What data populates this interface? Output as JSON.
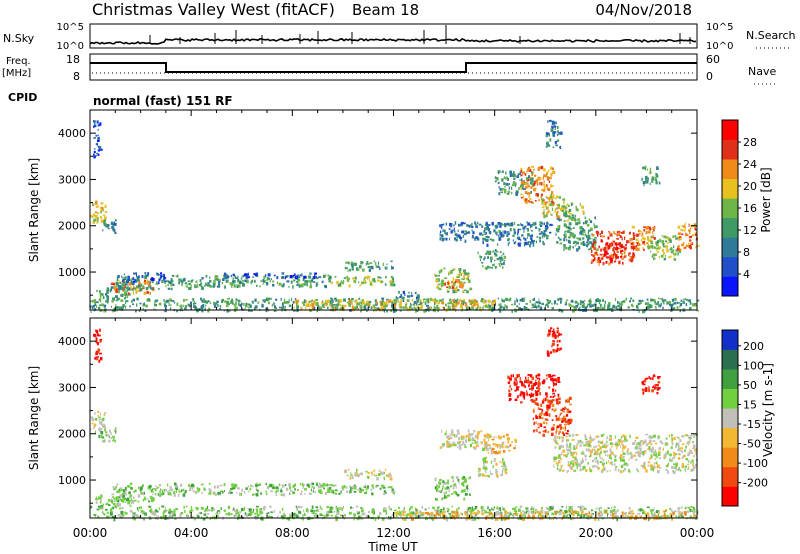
{
  "header": {
    "station": "Christmas Valley West (fitACF)",
    "beam": "Beam 18",
    "date": "04/Nov/2018"
  },
  "strips": {
    "nsky_label": "N.Sky",
    "nsky_tick_top": "10^5",
    "nsky_tick_bottom": "10^0",
    "nsearch_label": "N.Search",
    "nsearch_tick_top": "10^5",
    "nsearch_tick_bottom": "10^0",
    "freq_label": "Freq.",
    "freq_unit": "[MHz]",
    "freq_ticks": [
      "18",
      "8"
    ],
    "nave_label": "Nave",
    "nave_ticks": [
      "60",
      "0"
    ],
    "cpid_label": "CPID",
    "cpid_value": "normal (fast) 151 RF"
  },
  "chart_data": [
    {
      "type": "heatmap",
      "panel": "power",
      "xlabel": "",
      "ylabel": "Slant Range [km]",
      "xlim_hours": [
        0,
        24
      ],
      "ylim_km": [
        180,
        4500
      ],
      "yticks": [
        "4000",
        "3000",
        "2000",
        "1000"
      ],
      "colorbar_label": "Power [dB]",
      "colorbar_ticks": [
        "28",
        "24",
        "20",
        "16",
        "12",
        "8",
        "4"
      ],
      "colors": [
        "#0a14ff",
        "#1f4fc9",
        "#2f7a9a",
        "#3f9a66",
        "#6fb64a",
        "#e8c020",
        "#f08a1a",
        "#e0301a",
        "#ff0000"
      ],
      "regions": [
        {
          "x0": 0.0,
          "x1": 0.6,
          "y0": 2050,
          "y1": 2550,
          "level": 5
        },
        {
          "x0": 0.4,
          "x1": 1.0,
          "y0": 1850,
          "y1": 2150,
          "level": 2
        },
        {
          "x0": 0.1,
          "x1": 0.4,
          "y0": 3500,
          "y1": 4300,
          "level": 1
        },
        {
          "x0": 0.2,
          "x1": 1.6,
          "y0": 450,
          "y1": 700,
          "level": 3
        },
        {
          "x0": 0.8,
          "x1": 2.5,
          "y0": 550,
          "y1": 850,
          "level": 6
        },
        {
          "x0": 1.0,
          "x1": 4.5,
          "y0": 650,
          "y1": 950,
          "level": 3
        },
        {
          "x0": 1.2,
          "x1": 3.0,
          "y0": 800,
          "y1": 1000,
          "level": 1
        },
        {
          "x0": 4.5,
          "x1": 9.5,
          "y0": 700,
          "y1": 950,
          "level": 3
        },
        {
          "x0": 5.0,
          "x1": 9.0,
          "y0": 900,
          "y1": 1000,
          "level": 1
        },
        {
          "x0": 9.5,
          "x1": 12.0,
          "y0": 720,
          "y1": 920,
          "level": 4
        },
        {
          "x0": 10.0,
          "x1": 12.0,
          "y0": 1050,
          "y1": 1250,
          "level": 3
        },
        {
          "x0": 12.0,
          "x1": 13.0,
          "y0": 450,
          "y1": 600,
          "level": 2
        },
        {
          "x0": 13.6,
          "x1": 15.0,
          "y0": 600,
          "y1": 1100,
          "level": 4
        },
        {
          "x0": 14.0,
          "x1": 14.8,
          "y0": 650,
          "y1": 850,
          "level": 7
        },
        {
          "x0": 13.8,
          "x1": 15.8,
          "y0": 1700,
          "y1": 2100,
          "level": 2
        },
        {
          "x0": 15.3,
          "x1": 16.4,
          "y0": 1100,
          "y1": 1500,
          "level": 3
        },
        {
          "x0": 15.5,
          "x1": 18.2,
          "y0": 1600,
          "y1": 2100,
          "level": 2
        },
        {
          "x0": 16.0,
          "x1": 17.5,
          "y0": 2700,
          "y1": 3200,
          "level": 3
        },
        {
          "x0": 17.0,
          "x1": 18.3,
          "y0": 2500,
          "y1": 3300,
          "level": 6
        },
        {
          "x0": 17.8,
          "x1": 18.8,
          "y0": 2200,
          "y1": 2700,
          "level": 5
        },
        {
          "x0": 18.5,
          "x1": 19.5,
          "y0": 2100,
          "y1": 2500,
          "level": 4
        },
        {
          "x0": 18.0,
          "x1": 18.6,
          "y0": 3700,
          "y1": 4300,
          "level": 2
        },
        {
          "x0": 18.4,
          "x1": 20.0,
          "y0": 1500,
          "y1": 2200,
          "level": 3
        },
        {
          "x0": 19.8,
          "x1": 21.5,
          "y0": 1200,
          "y1": 1900,
          "level": 7
        },
        {
          "x0": 20.3,
          "x1": 21.0,
          "y0": 1300,
          "y1": 1700,
          "level": 8
        },
        {
          "x0": 21.3,
          "x1": 22.3,
          "y0": 1500,
          "y1": 2000,
          "level": 6
        },
        {
          "x0": 22.0,
          "x1": 23.3,
          "y0": 1300,
          "y1": 1800,
          "level": 4
        },
        {
          "x0": 23.2,
          "x1": 24.0,
          "y0": 1500,
          "y1": 2100,
          "level": 6
        },
        {
          "x0": 21.8,
          "x1": 22.5,
          "y0": 2900,
          "y1": 3300,
          "level": 3
        },
        {
          "x0": 0.0,
          "x1": 24.0,
          "y0": 180,
          "y1": 450,
          "level": 3
        },
        {
          "x0": 8.0,
          "x1": 16.0,
          "y0": 200,
          "y1": 420,
          "level": 5
        }
      ]
    },
    {
      "type": "heatmap",
      "panel": "velocity",
      "xlabel": "Time UT",
      "ylabel": "Slant Range [km]",
      "xlim_hours": [
        0,
        24
      ],
      "ylim_km": [
        180,
        4500
      ],
      "xticks": [
        "00:00",
        "04:00",
        "08:00",
        "12:00",
        "16:00",
        "20:00",
        "00:00"
      ],
      "yticks": [
        "4000",
        "3000",
        "2000",
        "1000"
      ],
      "colorbar_label": "Velocity [m s-1]",
      "colorbar_ticks": [
        "200",
        "100",
        "50",
        "15",
        "-15",
        "-50",
        "-100",
        "-200"
      ],
      "colors": [
        "#ff0000",
        "#f04a10",
        "#f08a1a",
        "#f3b733",
        "#c0c0b8",
        "#70d040",
        "#40a040",
        "#2a7050",
        "#1030c8"
      ],
      "regions": [
        {
          "x0": 0.0,
          "x1": 0.6,
          "y0": 2050,
          "y1": 2550,
          "level": 4
        },
        {
          "x0": 0.3,
          "x1": 1.0,
          "y0": 1850,
          "y1": 2150,
          "level": 5
        },
        {
          "x0": 0.1,
          "x1": 0.4,
          "y0": 3500,
          "y1": 4300,
          "level": 0
        },
        {
          "x0": 0.2,
          "x1": 1.6,
          "y0": 450,
          "y1": 700,
          "level": 5
        },
        {
          "x0": 0.8,
          "x1": 2.5,
          "y0": 550,
          "y1": 950,
          "level": 5
        },
        {
          "x0": 2.5,
          "x1": 9.5,
          "y0": 700,
          "y1": 950,
          "level": 5
        },
        {
          "x0": 9.5,
          "x1": 12.0,
          "y0": 720,
          "y1": 920,
          "level": 5
        },
        {
          "x0": 10.0,
          "x1": 12.0,
          "y0": 1050,
          "y1": 1250,
          "level": 4
        },
        {
          "x0": 13.6,
          "x1": 15.0,
          "y0": 600,
          "y1": 1100,
          "level": 5
        },
        {
          "x0": 13.8,
          "x1": 15.8,
          "y0": 1700,
          "y1": 2100,
          "level": 4
        },
        {
          "x0": 15.3,
          "x1": 16.4,
          "y0": 1100,
          "y1": 1500,
          "level": 4
        },
        {
          "x0": 15.5,
          "x1": 16.8,
          "y0": 1600,
          "y1": 2000,
          "level": 3
        },
        {
          "x0": 16.5,
          "x1": 18.5,
          "y0": 2700,
          "y1": 3300,
          "level": 0
        },
        {
          "x0": 17.5,
          "x1": 19.0,
          "y0": 2000,
          "y1": 2800,
          "level": 1
        },
        {
          "x0": 18.0,
          "x1": 18.6,
          "y0": 3700,
          "y1": 4300,
          "level": 0
        },
        {
          "x0": 18.3,
          "x1": 24.0,
          "y0": 1200,
          "y1": 2000,
          "level": 4
        },
        {
          "x0": 21.8,
          "x1": 22.5,
          "y0": 2900,
          "y1": 3300,
          "level": 0
        },
        {
          "x0": 0.0,
          "x1": 24.0,
          "y0": 180,
          "y1": 450,
          "level": 5
        },
        {
          "x0": 12.0,
          "x1": 24.0,
          "y0": 180,
          "y1": 350,
          "level": 3
        }
      ]
    }
  ]
}
